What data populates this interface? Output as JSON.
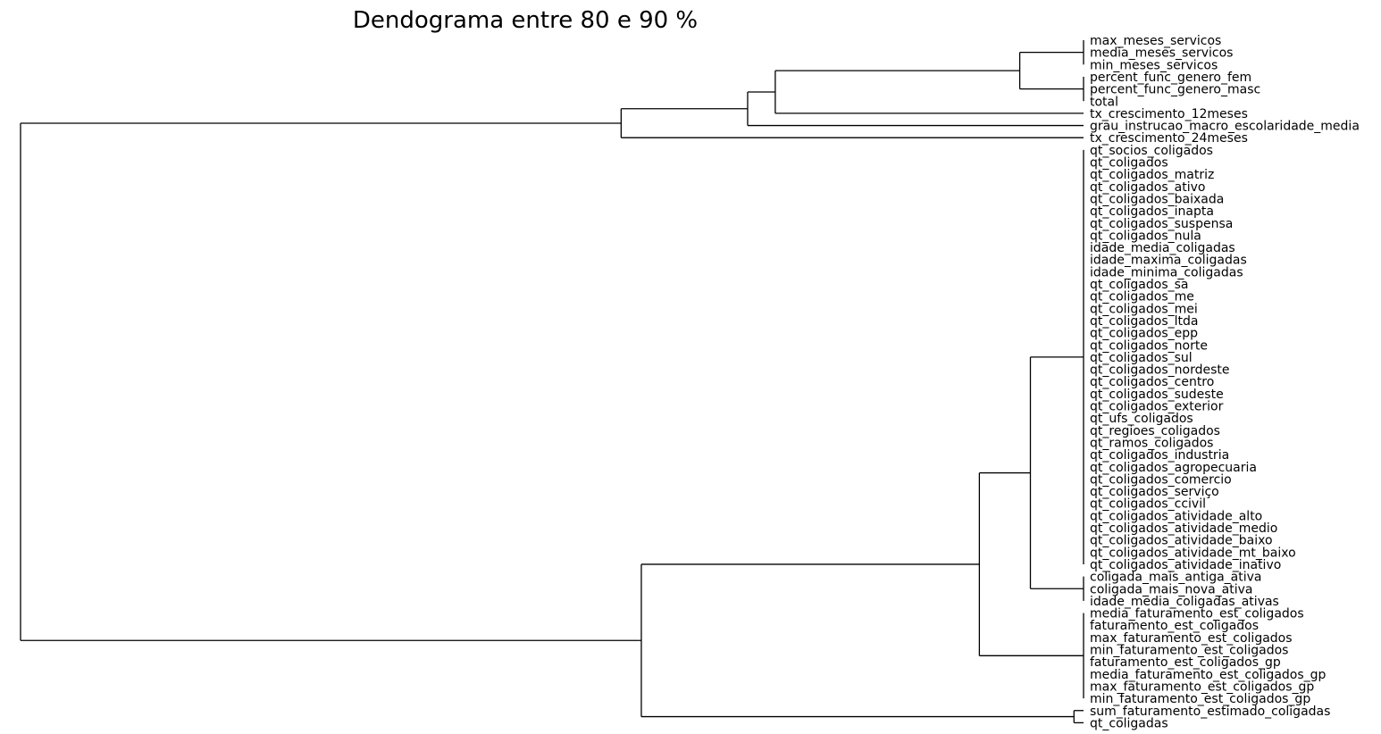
{
  "chart_data": {
    "type": "dendrogram",
    "orientation": "left",
    "title": "Dendograma entre 80 e 90 %",
    "xlabel": "",
    "ylabel": "",
    "axes_visible": false,
    "leaves": [
      "max_meses_servicos",
      "media_meses_servicos",
      "min_meses_servicos",
      "percent_func_genero_fem",
      "percent_func_genero_masc",
      "total",
      "tx_crescimento_12meses",
      "grau_instrucao_macro_escolaridade_media",
      "tx_crescimento_24meses",
      "qt_socios_coligados",
      "qt_coligados",
      "qt_coligados_matriz",
      "qt_coligados_ativo",
      "qt_coligados_baixada",
      "qt_coligados_inapta",
      "qt_coligados_suspensa",
      "qt_coligados_nula",
      "idade_media_coligadas",
      "idade_maxima_coligadas",
      "idade_minima_coligadas",
      "qt_coligados_sa",
      "qt_coligados_me",
      "qt_coligados_mei",
      "qt_coligados_ltda",
      "qt_coligados_epp",
      "qt_coligados_norte",
      "qt_coligados_sul",
      "qt_coligados_nordeste",
      "qt_coligados_centro",
      "qt_coligados_sudeste",
      "qt_coligados_exterior",
      "qt_ufs_coligados",
      "qt_regioes_coligados",
      "qt_ramos_coligados",
      "qt_coligados_industria",
      "qt_coligados_agropecuaria",
      "qt_coligados_comercio",
      "qt_coligados_serviço",
      "qt_coligados_ccivil",
      "qt_coligados_atividade_alto",
      "qt_coligados_atividade_medio",
      "qt_coligados_atividade_baixo",
      "qt_coligados_atividade_mt_baixo",
      "qt_coligados_atividade_inativo",
      "coligada_mais_antiga_ativa",
      "coligada_mais_nova_ativa",
      "idade_media_coligadas_ativas",
      "media_faturamento_est_coligados",
      "faturamento_est_coligados",
      "max_faturamento_est_coligados",
      "min_faturamento_est_coligados",
      "faturamento_est_coligados_gp",
      "media_faturamento_est_coligados_gp",
      "max_faturamento_est_coligados_gp",
      "min_faturamento_est_coligados_gp",
      "sum_faturamento_estimado_coligadas",
      "qt_coligadas"
    ],
    "tree": {
      "h": 1.0,
      "children": [
        {
          "h": 0.435,
          "children": [
            {
              "h": 0.316,
              "children": [
                {
                  "h": 0.29,
                  "children": [
                    {
                      "h": 0.06,
                      "children": [
                        {
                          "leaves": [
                            0,
                            1,
                            2
                          ]
                        },
                        {
                          "leaves": [
                            3,
                            4,
                            5
                          ]
                        }
                      ]
                    },
                    {
                      "leaves": [
                        6
                      ]
                    }
                  ]
                },
                {
                  "leaves": [
                    7
                  ]
                }
              ]
            },
            {
              "leaves": [
                8
              ]
            }
          ]
        },
        {
          "h": 0.416,
          "children": [
            {
              "h": 0.098,
              "children": [
                {
                  "h": 0.05,
                  "children": [
                    {
                      "leaves": [
                        9,
                        10,
                        11,
                        12,
                        13,
                        14,
                        15,
                        16,
                        17,
                        18,
                        19,
                        20,
                        21,
                        22,
                        23,
                        24,
                        25,
                        26,
                        27,
                        28,
                        29,
                        30,
                        31,
                        32,
                        33,
                        34,
                        35,
                        36,
                        37,
                        38,
                        39,
                        40,
                        41,
                        42,
                        43
                      ]
                    },
                    {
                      "leaves": [
                        44,
                        45,
                        46
                      ]
                    }
                  ]
                },
                {
                  "leaves": [
                    47,
                    48,
                    49,
                    50,
                    51,
                    52,
                    53,
                    54
                  ]
                }
              ]
            },
            {
              "h": 0.009,
              "children": [
                {
                  "leaves": [
                    55
                  ]
                },
                {
                  "leaves": [
                    56
                  ]
                }
              ]
            }
          ]
        }
      ]
    }
  }
}
